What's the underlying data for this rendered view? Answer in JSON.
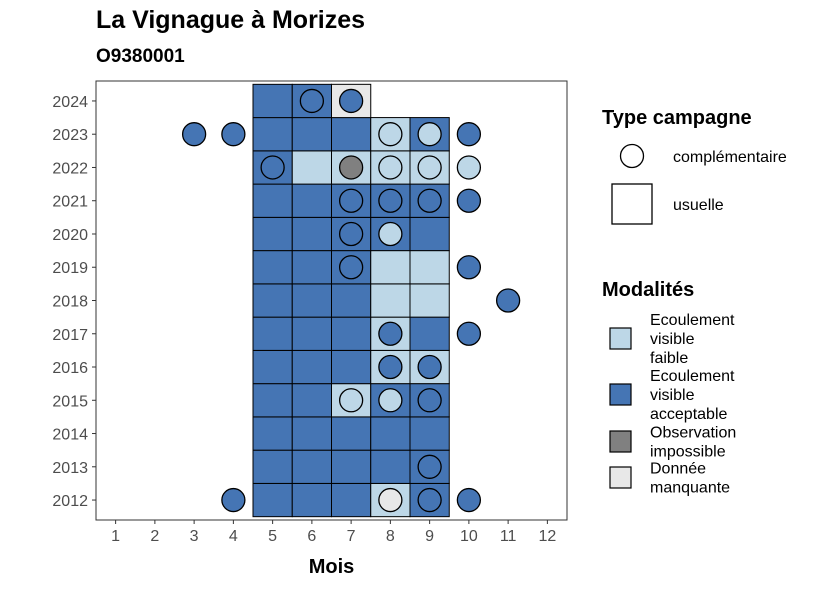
{
  "title": "La Vignague à Morizes",
  "subtitle": "O9380001",
  "colors": {
    "faible": "#bdd7e7",
    "acceptable": "#4575b4",
    "impossible": "#808080",
    "manquante": "#e8e8e8"
  },
  "chart_data": {
    "type": "heatmap",
    "xlabel": "Mois",
    "ylabel": "",
    "x_ticks": [
      1,
      2,
      3,
      4,
      5,
      6,
      7,
      8,
      9,
      10,
      11,
      12
    ],
    "y_ticks": [
      2012,
      2013,
      2014,
      2015,
      2016,
      2017,
      2018,
      2019,
      2020,
      2021,
      2022,
      2023,
      2024
    ],
    "xlim": [
      0.5,
      12.5
    ],
    "ylim": [
      2011.4,
      2024.6
    ],
    "grid": false,
    "legend_position": "right",
    "observations": [
      {
        "month": 5,
        "year": 2012,
        "modalite": "acceptable",
        "campagne": "usuelle"
      },
      {
        "month": 6,
        "year": 2012,
        "modalite": "acceptable",
        "campagne": "usuelle"
      },
      {
        "month": 7,
        "year": 2012,
        "modalite": "acceptable",
        "campagne": "usuelle"
      },
      {
        "month": 8,
        "year": 2012,
        "modalite": "faible",
        "campagne": "usuelle"
      },
      {
        "month": 9,
        "year": 2012,
        "modalite": "acceptable",
        "campagne": "usuelle"
      },
      {
        "month": 5,
        "year": 2013,
        "modalite": "acceptable",
        "campagne": "usuelle"
      },
      {
        "month": 6,
        "year": 2013,
        "modalite": "acceptable",
        "campagne": "usuelle"
      },
      {
        "month": 7,
        "year": 2013,
        "modalite": "acceptable",
        "campagne": "usuelle"
      },
      {
        "month": 8,
        "year": 2013,
        "modalite": "acceptable",
        "campagne": "usuelle"
      },
      {
        "month": 9,
        "year": 2013,
        "modalite": "acceptable",
        "campagne": "usuelle"
      },
      {
        "month": 5,
        "year": 2014,
        "modalite": "acceptable",
        "campagne": "usuelle"
      },
      {
        "month": 6,
        "year": 2014,
        "modalite": "acceptable",
        "campagne": "usuelle"
      },
      {
        "month": 7,
        "year": 2014,
        "modalite": "acceptable",
        "campagne": "usuelle"
      },
      {
        "month": 8,
        "year": 2014,
        "modalite": "acceptable",
        "campagne": "usuelle"
      },
      {
        "month": 9,
        "year": 2014,
        "modalite": "acceptable",
        "campagne": "usuelle"
      },
      {
        "month": 5,
        "year": 2015,
        "modalite": "acceptable",
        "campagne": "usuelle"
      },
      {
        "month": 6,
        "year": 2015,
        "modalite": "acceptable",
        "campagne": "usuelle"
      },
      {
        "month": 7,
        "year": 2015,
        "modalite": "faible",
        "campagne": "usuelle"
      },
      {
        "month": 8,
        "year": 2015,
        "modalite": "acceptable",
        "campagne": "usuelle"
      },
      {
        "month": 9,
        "year": 2015,
        "modalite": "acceptable",
        "campagne": "usuelle"
      },
      {
        "month": 5,
        "year": 2016,
        "modalite": "acceptable",
        "campagne": "usuelle"
      },
      {
        "month": 6,
        "year": 2016,
        "modalite": "acceptable",
        "campagne": "usuelle"
      },
      {
        "month": 7,
        "year": 2016,
        "modalite": "acceptable",
        "campagne": "usuelle"
      },
      {
        "month": 8,
        "year": 2016,
        "modalite": "faible",
        "campagne": "usuelle"
      },
      {
        "month": 9,
        "year": 2016,
        "modalite": "faible",
        "campagne": "usuelle"
      },
      {
        "month": 5,
        "year": 2017,
        "modalite": "acceptable",
        "campagne": "usuelle"
      },
      {
        "month": 6,
        "year": 2017,
        "modalite": "acceptable",
        "campagne": "usuelle"
      },
      {
        "month": 7,
        "year": 2017,
        "modalite": "acceptable",
        "campagne": "usuelle"
      },
      {
        "month": 8,
        "year": 2017,
        "modalite": "faible",
        "campagne": "usuelle"
      },
      {
        "month": 9,
        "year": 2017,
        "modalite": "acceptable",
        "campagne": "usuelle"
      },
      {
        "month": 5,
        "year": 2018,
        "modalite": "acceptable",
        "campagne": "usuelle"
      },
      {
        "month": 6,
        "year": 2018,
        "modalite": "acceptable",
        "campagne": "usuelle"
      },
      {
        "month": 7,
        "year": 2018,
        "modalite": "acceptable",
        "campagne": "usuelle"
      },
      {
        "month": 8,
        "year": 2018,
        "modalite": "faible",
        "campagne": "usuelle"
      },
      {
        "month": 9,
        "year": 2018,
        "modalite": "faible",
        "campagne": "usuelle"
      },
      {
        "month": 5,
        "year": 2019,
        "modalite": "acceptable",
        "campagne": "usuelle"
      },
      {
        "month": 6,
        "year": 2019,
        "modalite": "acceptable",
        "campagne": "usuelle"
      },
      {
        "month": 7,
        "year": 2019,
        "modalite": "acceptable",
        "campagne": "usuelle"
      },
      {
        "month": 8,
        "year": 2019,
        "modalite": "faible",
        "campagne": "usuelle"
      },
      {
        "month": 9,
        "year": 2019,
        "modalite": "faible",
        "campagne": "usuelle"
      },
      {
        "month": 5,
        "year": 2020,
        "modalite": "acceptable",
        "campagne": "usuelle"
      },
      {
        "month": 6,
        "year": 2020,
        "modalite": "acceptable",
        "campagne": "usuelle"
      },
      {
        "month": 7,
        "year": 2020,
        "modalite": "acceptable",
        "campagne": "usuelle"
      },
      {
        "month": 8,
        "year": 2020,
        "modalite": "acceptable",
        "campagne": "usuelle"
      },
      {
        "month": 9,
        "year": 2020,
        "modalite": "acceptable",
        "campagne": "usuelle"
      },
      {
        "month": 5,
        "year": 2021,
        "modalite": "acceptable",
        "campagne": "usuelle"
      },
      {
        "month": 6,
        "year": 2021,
        "modalite": "acceptable",
        "campagne": "usuelle"
      },
      {
        "month": 7,
        "year": 2021,
        "modalite": "acceptable",
        "campagne": "usuelle"
      },
      {
        "month": 8,
        "year": 2021,
        "modalite": "acceptable",
        "campagne": "usuelle"
      },
      {
        "month": 9,
        "year": 2021,
        "modalite": "acceptable",
        "campagne": "usuelle"
      },
      {
        "month": 5,
        "year": 2022,
        "modalite": "acceptable",
        "campagne": "usuelle"
      },
      {
        "month": 6,
        "year": 2022,
        "modalite": "faible",
        "campagne": "usuelle"
      },
      {
        "month": 7,
        "year": 2022,
        "modalite": "faible",
        "campagne": "usuelle"
      },
      {
        "month": 8,
        "year": 2022,
        "modalite": "faible",
        "campagne": "usuelle"
      },
      {
        "month": 9,
        "year": 2022,
        "modalite": "faible",
        "campagne": "usuelle"
      },
      {
        "month": 5,
        "year": 2023,
        "modalite": "acceptable",
        "campagne": "usuelle"
      },
      {
        "month": 6,
        "year": 2023,
        "modalite": "acceptable",
        "campagne": "usuelle"
      },
      {
        "month": 7,
        "year": 2023,
        "modalite": "acceptable",
        "campagne": "usuelle"
      },
      {
        "month": 8,
        "year": 2023,
        "modalite": "faible",
        "campagne": "usuelle"
      },
      {
        "month": 9,
        "year": 2023,
        "modalite": "acceptable",
        "campagne": "usuelle"
      },
      {
        "month": 5,
        "year": 2024,
        "modalite": "acceptable",
        "campagne": "usuelle"
      },
      {
        "month": 6,
        "year": 2024,
        "modalite": "acceptable",
        "campagne": "usuelle"
      },
      {
        "month": 7,
        "year": 2024,
        "modalite": "manquante",
        "campagne": "usuelle"
      },
      {
        "month": 4,
        "year": 2012,
        "modalite": "acceptable",
        "campagne": "complémentaire"
      },
      {
        "month": 8,
        "year": 2012,
        "modalite": "manquante",
        "campagne": "complémentaire"
      },
      {
        "month": 9,
        "year": 2012,
        "modalite": "acceptable",
        "campagne": "complémentaire"
      },
      {
        "month": 10,
        "year": 2012,
        "modalite": "acceptable",
        "campagne": "complémentaire"
      },
      {
        "month": 9,
        "year": 2013,
        "modalite": "acceptable",
        "campagne": "complémentaire"
      },
      {
        "month": 7,
        "year": 2015,
        "modalite": "faible",
        "campagne": "complémentaire"
      },
      {
        "month": 8,
        "year": 2015,
        "modalite": "faible",
        "campagne": "complémentaire"
      },
      {
        "month": 9,
        "year": 2015,
        "modalite": "acceptable",
        "campagne": "complémentaire"
      },
      {
        "month": 8,
        "year": 2016,
        "modalite": "acceptable",
        "campagne": "complémentaire"
      },
      {
        "month": 9,
        "year": 2016,
        "modalite": "acceptable",
        "campagne": "complémentaire"
      },
      {
        "month": 8,
        "year": 2017,
        "modalite": "acceptable",
        "campagne": "complémentaire"
      },
      {
        "month": 10,
        "year": 2017,
        "modalite": "acceptable",
        "campagne": "complémentaire"
      },
      {
        "month": 11,
        "year": 2018,
        "modalite": "acceptable",
        "campagne": "complémentaire"
      },
      {
        "month": 7,
        "year": 2019,
        "modalite": "acceptable",
        "campagne": "complémentaire"
      },
      {
        "month": 10,
        "year": 2019,
        "modalite": "acceptable",
        "campagne": "complémentaire"
      },
      {
        "month": 7,
        "year": 2020,
        "modalite": "acceptable",
        "campagne": "complémentaire"
      },
      {
        "month": 8,
        "year": 2020,
        "modalite": "faible",
        "campagne": "complémentaire"
      },
      {
        "month": 7,
        "year": 2021,
        "modalite": "acceptable",
        "campagne": "complémentaire"
      },
      {
        "month": 8,
        "year": 2021,
        "modalite": "acceptable",
        "campagne": "complémentaire"
      },
      {
        "month": 9,
        "year": 2021,
        "modalite": "acceptable",
        "campagne": "complémentaire"
      },
      {
        "month": 10,
        "year": 2021,
        "modalite": "acceptable",
        "campagne": "complémentaire"
      },
      {
        "month": 5,
        "year": 2022,
        "modalite": "acceptable",
        "campagne": "complémentaire"
      },
      {
        "month": 7,
        "year": 2022,
        "modalite": "impossible",
        "campagne": "complémentaire"
      },
      {
        "month": 8,
        "year": 2022,
        "modalite": "faible",
        "campagne": "complémentaire"
      },
      {
        "month": 9,
        "year": 2022,
        "modalite": "faible",
        "campagne": "complémentaire"
      },
      {
        "month": 10,
        "year": 2022,
        "modalite": "faible",
        "campagne": "complémentaire"
      },
      {
        "month": 3,
        "year": 2023,
        "modalite": "acceptable",
        "campagne": "complémentaire"
      },
      {
        "month": 4,
        "year": 2023,
        "modalite": "acceptable",
        "campagne": "complémentaire"
      },
      {
        "month": 8,
        "year": 2023,
        "modalite": "faible",
        "campagne": "complémentaire"
      },
      {
        "month": 9,
        "year": 2023,
        "modalite": "faible",
        "campagne": "complémentaire"
      },
      {
        "month": 10,
        "year": 2023,
        "modalite": "acceptable",
        "campagne": "complémentaire"
      },
      {
        "month": 6,
        "year": 2024,
        "modalite": "acceptable",
        "campagne": "complémentaire"
      },
      {
        "month": 7,
        "year": 2024,
        "modalite": "acceptable",
        "campagne": "complémentaire"
      }
    ]
  },
  "legend": {
    "type_title": "Type campagne",
    "type_items": [
      {
        "key": "complémentaire",
        "label": "complémentaire"
      },
      {
        "key": "usuelle",
        "label": "usuelle"
      }
    ],
    "mod_title": "Modalités",
    "mod_items": [
      {
        "key": "faible",
        "lines": [
          "Ecoulement",
          "visible",
          "faible"
        ]
      },
      {
        "key": "acceptable",
        "lines": [
          "Ecoulement",
          "visible",
          "acceptable"
        ]
      },
      {
        "key": "impossible",
        "lines": [
          "Observation",
          "impossible"
        ]
      },
      {
        "key": "manquante",
        "lines": [
          "Donnée",
          "manquante"
        ]
      }
    ]
  }
}
